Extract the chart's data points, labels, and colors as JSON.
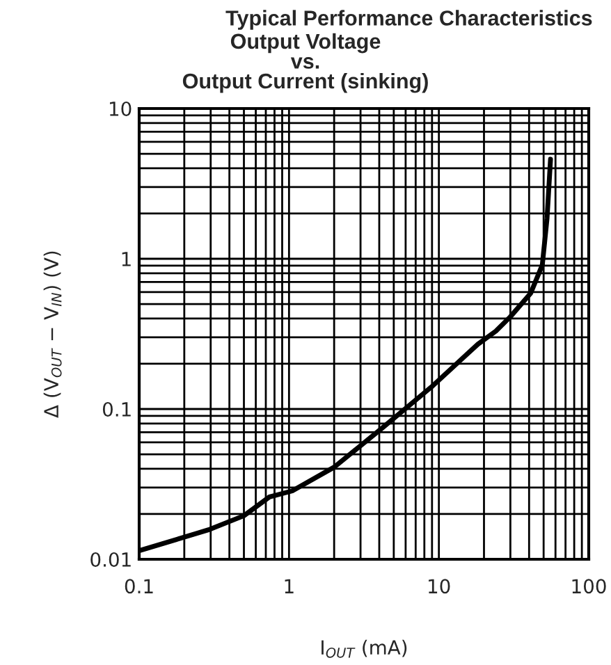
{
  "chart_data": {
    "type": "line",
    "title": "Typical Performance Characteristics",
    "subtitle": "Output Voltage\nvs.\nOutput Current (sinking)",
    "xlabel": "I$_{OUT}$ (mA)",
    "ylabel": "Δ (V$_{OUT}$ − V$_{IN}$) (V)",
    "log": "xy",
    "grid": true,
    "marker": "none",
    "line_style": "solid",
    "xlim": [
      0.1,
      100
    ],
    "ylim": [
      0.01,
      10
    ],
    "xticks": [
      0.1,
      1,
      10,
      100
    ],
    "yticks": [
      0.01,
      0.1,
      1,
      10
    ],
    "series": [
      {
        "color": "#000000",
        "x": [
          0.1,
          0.29,
          0.5,
          0.74,
          1.05,
          2.0,
          4.07,
          8.9,
          18.2,
          24,
          29.9,
          41,
          49,
          52.7,
          55.6
        ],
        "values": [
          0.0114,
          0.0157,
          0.0195,
          0.026,
          0.0285,
          0.041,
          0.073,
          0.14,
          0.27,
          0.33,
          0.41,
          0.59,
          0.91,
          1.86,
          4.6
        ]
      }
    ]
  }
}
